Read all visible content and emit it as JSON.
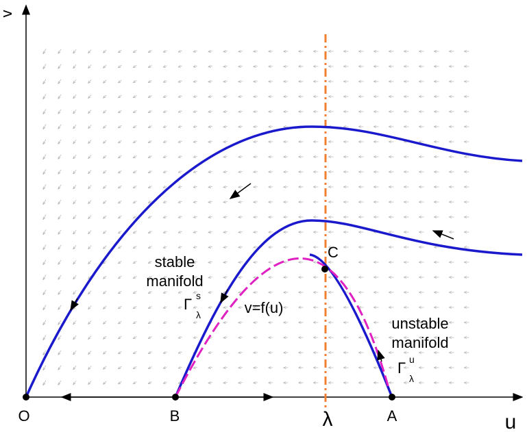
{
  "axes": {
    "x_label": "u",
    "y_label": "v"
  },
  "points": {
    "origin": "O",
    "b": "B",
    "lambda": "λ",
    "a": "A",
    "c": "C"
  },
  "stable": {
    "line1": "stable",
    "line2": "manifold",
    "symbol": "Γ",
    "sup": "s",
    "sub": "λ"
  },
  "curve_label": "v=f(u)",
  "unstable": {
    "line1": "unstable",
    "line2": "manifold",
    "symbol": "Γ",
    "sup": "u",
    "sub": "λ"
  }
}
